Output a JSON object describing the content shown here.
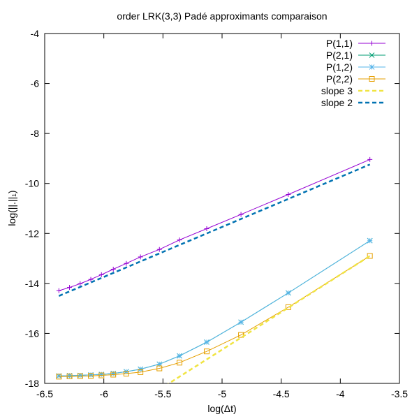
{
  "chart_data": {
    "type": "line",
    "title": "order LRK(3,3) Padé approximants comparaison",
    "xlabel": "log(Δt)",
    "ylabel": "log(||.||₁)",
    "xlim": [
      -6.5,
      -3.5
    ],
    "ylim": [
      -18,
      -4
    ],
    "xticks": [
      -6.5,
      -6,
      -5.5,
      -5,
      -4.5,
      -4,
      -3.5
    ],
    "xtick_labels": [
      "-6.5",
      "-6",
      "-5.5",
      "-5",
      "-4.5",
      "-4",
      "-3.5"
    ],
    "yticks": [
      -18,
      -16,
      -14,
      -12,
      -10,
      -8,
      -6,
      -4
    ],
    "ytick_labels": [
      "-18",
      "-16",
      "-14",
      "-12",
      "-10",
      "-8",
      "-6",
      "-4"
    ],
    "grid": false,
    "legend": "top-right",
    "series": [
      {
        "name": "P(1,1)",
        "color": "#9400d3",
        "marker": "plus",
        "dash": "solid",
        "x": [
          -6.38,
          -6.29,
          -6.2,
          -6.11,
          -6.02,
          -5.92,
          -5.81,
          -5.69,
          -5.53,
          -5.36,
          -5.13,
          -4.84,
          -4.44,
          -3.75
        ],
        "y": [
          -14.29,
          -14.16,
          -14.01,
          -13.84,
          -13.65,
          -13.43,
          -13.2,
          -12.94,
          -12.64,
          -12.26,
          -11.81,
          -11.24,
          -10.44,
          -9.04
        ]
      },
      {
        "name": "P(2,1)",
        "color": "#009e73",
        "marker": "x",
        "dash": "solid",
        "x": [
          -6.38,
          -6.29,
          -6.2,
          -6.11,
          -6.02,
          -5.92,
          -5.81,
          -5.69,
          -5.53,
          -5.36,
          -5.13,
          -4.84,
          -4.44,
          -3.75
        ],
        "y": [
          -17.7,
          -17.69,
          -17.68,
          -17.66,
          -17.64,
          -17.6,
          -17.53,
          -17.43,
          -17.23,
          -16.9,
          -16.35,
          -15.55,
          -14.38,
          -12.29
        ]
      },
      {
        "name": "P(1,2)",
        "color": "#56b4e9",
        "marker": "star",
        "dash": "solid",
        "x": [
          -6.38,
          -6.29,
          -6.2,
          -6.11,
          -6.02,
          -5.92,
          -5.81,
          -5.69,
          -5.53,
          -5.36,
          -5.13,
          -4.84,
          -4.44,
          -3.75
        ],
        "y": [
          -17.7,
          -17.69,
          -17.68,
          -17.66,
          -17.64,
          -17.6,
          -17.53,
          -17.43,
          -17.23,
          -16.9,
          -16.35,
          -15.55,
          -14.38,
          -12.29
        ]
      },
      {
        "name": "P(2,2)",
        "color": "#e69f00",
        "marker": "square",
        "dash": "solid",
        "x": [
          -6.38,
          -6.29,
          -6.2,
          -6.11,
          -6.02,
          -5.92,
          -5.81,
          -5.69,
          -5.53,
          -5.36,
          -5.13,
          -4.84,
          -4.44,
          -3.75
        ],
        "y": [
          -17.73,
          -17.72,
          -17.71,
          -17.7,
          -17.68,
          -17.65,
          -17.61,
          -17.55,
          -17.4,
          -17.17,
          -16.72,
          -16.06,
          -14.95,
          -12.9
        ]
      },
      {
        "name": "slope 3",
        "color": "#f0e442",
        "marker": "none",
        "dash": "dashed",
        "x": [
          -5.53,
          -3.75
        ],
        "y": [
          -18.24,
          -12.9
        ]
      },
      {
        "name": "slope 2",
        "color": "#0072b2",
        "marker": "none",
        "dash": "dashed",
        "x": [
          -6.38,
          -3.75
        ],
        "y": [
          -14.5,
          -9.24
        ]
      }
    ]
  }
}
